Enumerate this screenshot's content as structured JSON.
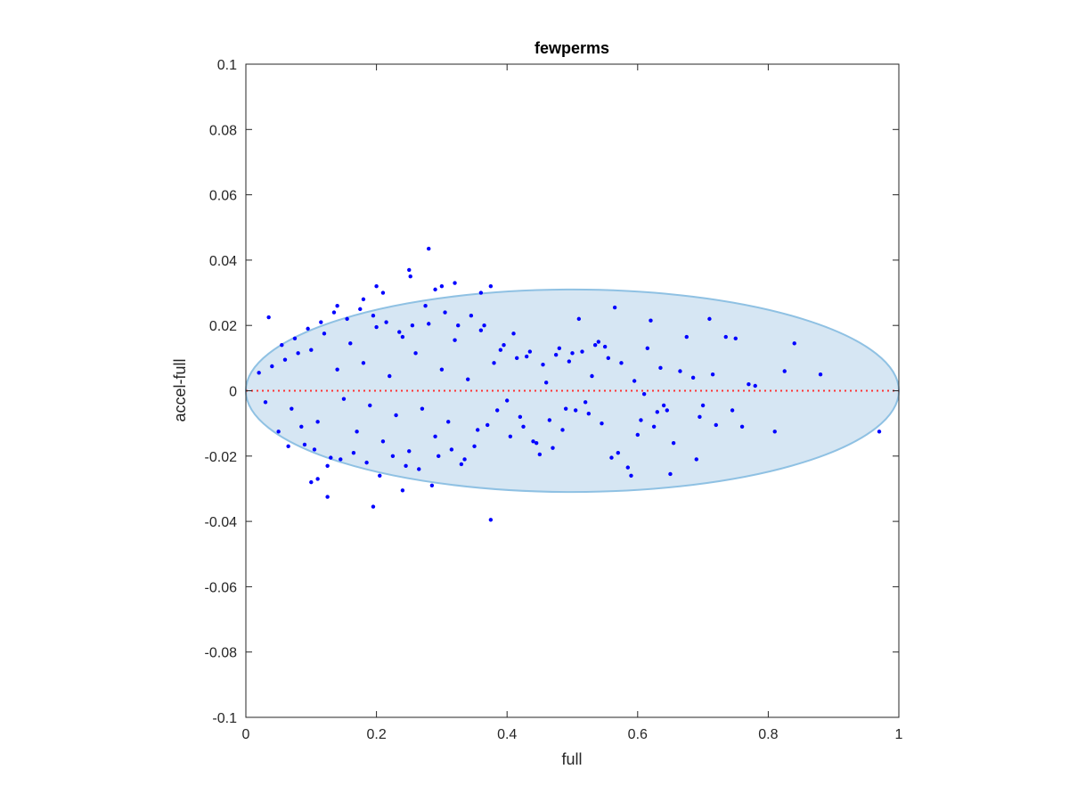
{
  "chart_data": {
    "type": "scatter",
    "title": "fewperms",
    "xlabel": "full",
    "ylabel": "accel-full",
    "xlim": [
      0,
      1
    ],
    "ylim": [
      -0.1,
      0.1
    ],
    "xticks": [
      0,
      0.2,
      0.4,
      0.6,
      0.8,
      1
    ],
    "xtick_labels": [
      "0",
      "0.2",
      "0.4",
      "0.6",
      "0.8",
      "1"
    ],
    "yticks": [
      -0.1,
      -0.08,
      -0.06,
      -0.04,
      -0.02,
      0,
      0.02,
      0.04,
      0.06,
      0.08,
      0.1
    ],
    "ytick_labels": [
      "-0.1",
      "-0.08",
      "-0.06",
      "-0.04",
      "-0.02",
      "0",
      "0.02",
      "0.04",
      "0.06",
      "0.08",
      "0.1"
    ],
    "grid": false,
    "reference_line": {
      "y": 0,
      "style": "dotted",
      "color": "#ff3333"
    },
    "ellipse": {
      "cx": 0.5,
      "cy": 0,
      "rx": 0.5,
      "ry": 0.031,
      "fill": "#d6e6f3",
      "stroke": "#8fc1e3"
    },
    "colors": {
      "points": "#0000ff",
      "axes": "#262626"
    },
    "series": [
      {
        "points": [
          [
            0.28,
            0.0435
          ],
          [
            0.25,
            0.037
          ],
          [
            0.252,
            0.035
          ],
          [
            0.2,
            0.032
          ],
          [
            0.32,
            0.033
          ],
          [
            0.375,
            0.032
          ],
          [
            0.21,
            0.03
          ],
          [
            0.29,
            0.031
          ],
          [
            0.3,
            0.032
          ],
          [
            0.36,
            0.03
          ],
          [
            0.18,
            0.028
          ],
          [
            0.14,
            0.026
          ],
          [
            0.375,
            -0.0395
          ],
          [
            0.195,
            -0.0355
          ],
          [
            0.125,
            -0.0325
          ],
          [
            0.1,
            -0.028
          ],
          [
            0.11,
            -0.027
          ],
          [
            0.24,
            -0.0305
          ],
          [
            0.285,
            -0.029
          ],
          [
            0.97,
            -0.0125
          ],
          [
            0.88,
            0.005
          ],
          [
            0.84,
            0.0145
          ],
          [
            0.825,
            0.006
          ],
          [
            0.81,
            -0.0125
          ],
          [
            0.78,
            0.0015
          ],
          [
            0.77,
            0.002
          ],
          [
            0.76,
            -0.011
          ],
          [
            0.75,
            0.016
          ],
          [
            0.735,
            0.0165
          ],
          [
            0.72,
            -0.0105
          ],
          [
            0.71,
            0.022
          ],
          [
            0.7,
            -0.0045
          ],
          [
            0.69,
            -0.021
          ],
          [
            0.675,
            0.0165
          ],
          [
            0.665,
            0.006
          ],
          [
            0.655,
            -0.016
          ],
          [
            0.65,
            -0.0255
          ],
          [
            0.64,
            -0.0045
          ],
          [
            0.63,
            -0.0065
          ],
          [
            0.62,
            0.0215
          ],
          [
            0.61,
            -0.001
          ],
          [
            0.6,
            -0.0135
          ],
          [
            0.59,
            -0.026
          ],
          [
            0.585,
            -0.0235
          ],
          [
            0.575,
            0.0085
          ],
          [
            0.57,
            -0.019
          ],
          [
            0.565,
            0.0255
          ],
          [
            0.56,
            -0.0205
          ],
          [
            0.55,
            0.0135
          ],
          [
            0.54,
            0.015
          ],
          [
            0.53,
            0.0045
          ],
          [
            0.52,
            -0.0035
          ],
          [
            0.51,
            0.022
          ],
          [
            0.5,
            0.0115
          ],
          [
            0.49,
            -0.0055
          ],
          [
            0.48,
            0.013
          ],
          [
            0.47,
            -0.0175
          ],
          [
            0.46,
            0.0025
          ],
          [
            0.45,
            -0.0195
          ],
          [
            0.44,
            -0.0155
          ],
          [
            0.43,
            0.0105
          ],
          [
            0.42,
            -0.008
          ],
          [
            0.41,
            0.0175
          ],
          [
            0.4,
            -0.003
          ],
          [
            0.39,
            0.0125
          ],
          [
            0.38,
            0.0085
          ],
          [
            0.37,
            -0.0105
          ],
          [
            0.36,
            0.0185
          ],
          [
            0.35,
            -0.017
          ],
          [
            0.34,
            0.0035
          ],
          [
            0.33,
            -0.0225
          ],
          [
            0.32,
            0.0155
          ],
          [
            0.31,
            -0.0095
          ],
          [
            0.3,
            0.0065
          ],
          [
            0.29,
            -0.014
          ],
          [
            0.28,
            0.0205
          ],
          [
            0.27,
            -0.0055
          ],
          [
            0.26,
            0.0115
          ],
          [
            0.25,
            -0.0185
          ],
          [
            0.24,
            0.0165
          ],
          [
            0.23,
            -0.0075
          ],
          [
            0.22,
            0.0045
          ],
          [
            0.21,
            -0.0155
          ],
          [
            0.2,
            0.0195
          ],
          [
            0.19,
            -0.0045
          ],
          [
            0.18,
            0.0085
          ],
          [
            0.17,
            -0.0125
          ],
          [
            0.16,
            0.0145
          ],
          [
            0.15,
            -0.0025
          ],
          [
            0.14,
            0.0065
          ],
          [
            0.13,
            -0.0205
          ],
          [
            0.12,
            0.0175
          ],
          [
            0.11,
            -0.0095
          ],
          [
            0.1,
            0.0125
          ],
          [
            0.09,
            -0.0165
          ],
          [
            0.08,
            0.0115
          ],
          [
            0.07,
            -0.0055
          ],
          [
            0.06,
            0.0095
          ],
          [
            0.05,
            -0.0125
          ],
          [
            0.04,
            0.0075
          ],
          [
            0.03,
            -0.0035
          ],
          [
            0.02,
            0.0055
          ],
          [
            0.035,
            0.0225
          ],
          [
            0.055,
            0.014
          ],
          [
            0.065,
            -0.017
          ],
          [
            0.075,
            0.016
          ],
          [
            0.085,
            -0.011
          ],
          [
            0.095,
            0.019
          ],
          [
            0.105,
            -0.018
          ],
          [
            0.115,
            0.021
          ],
          [
            0.125,
            -0.023
          ],
          [
            0.135,
            0.024
          ],
          [
            0.145,
            -0.021
          ],
          [
            0.155,
            0.022
          ],
          [
            0.165,
            -0.019
          ],
          [
            0.175,
            0.025
          ],
          [
            0.185,
            -0.022
          ],
          [
            0.195,
            0.023
          ],
          [
            0.205,
            -0.026
          ],
          [
            0.215,
            0.021
          ],
          [
            0.225,
            -0.02
          ],
          [
            0.235,
            0.018
          ],
          [
            0.245,
            -0.023
          ],
          [
            0.255,
            0.02
          ],
          [
            0.265,
            -0.024
          ],
          [
            0.275,
            0.026
          ],
          [
            0.295,
            -0.02
          ],
          [
            0.305,
            0.024
          ],
          [
            0.315,
            -0.018
          ],
          [
            0.325,
            0.02
          ],
          [
            0.335,
            -0.021
          ],
          [
            0.345,
            0.023
          ],
          [
            0.355,
            -0.012
          ],
          [
            0.365,
            0.02
          ],
          [
            0.385,
            -0.006
          ],
          [
            0.395,
            0.014
          ],
          [
            0.405,
            -0.014
          ],
          [
            0.415,
            0.01
          ],
          [
            0.425,
            -0.011
          ],
          [
            0.435,
            0.012
          ],
          [
            0.445,
            -0.016
          ],
          [
            0.455,
            0.008
          ],
          [
            0.465,
            -0.009
          ],
          [
            0.475,
            0.011
          ],
          [
            0.485,
            -0.012
          ],
          [
            0.495,
            0.009
          ],
          [
            0.505,
            -0.006
          ],
          [
            0.515,
            0.012
          ],
          [
            0.525,
            -0.007
          ],
          [
            0.535,
            0.014
          ],
          [
            0.545,
            -0.01
          ],
          [
            0.555,
            0.01
          ],
          [
            0.595,
            0.003
          ],
          [
            0.605,
            -0.009
          ],
          [
            0.615,
            0.013
          ],
          [
            0.625,
            -0.011
          ],
          [
            0.635,
            0.007
          ],
          [
            0.645,
            -0.006
          ],
          [
            0.685,
            0.004
          ],
          [
            0.695,
            -0.008
          ],
          [
            0.715,
            0.005
          ],
          [
            0.745,
            -0.006
          ]
        ]
      }
    ]
  }
}
